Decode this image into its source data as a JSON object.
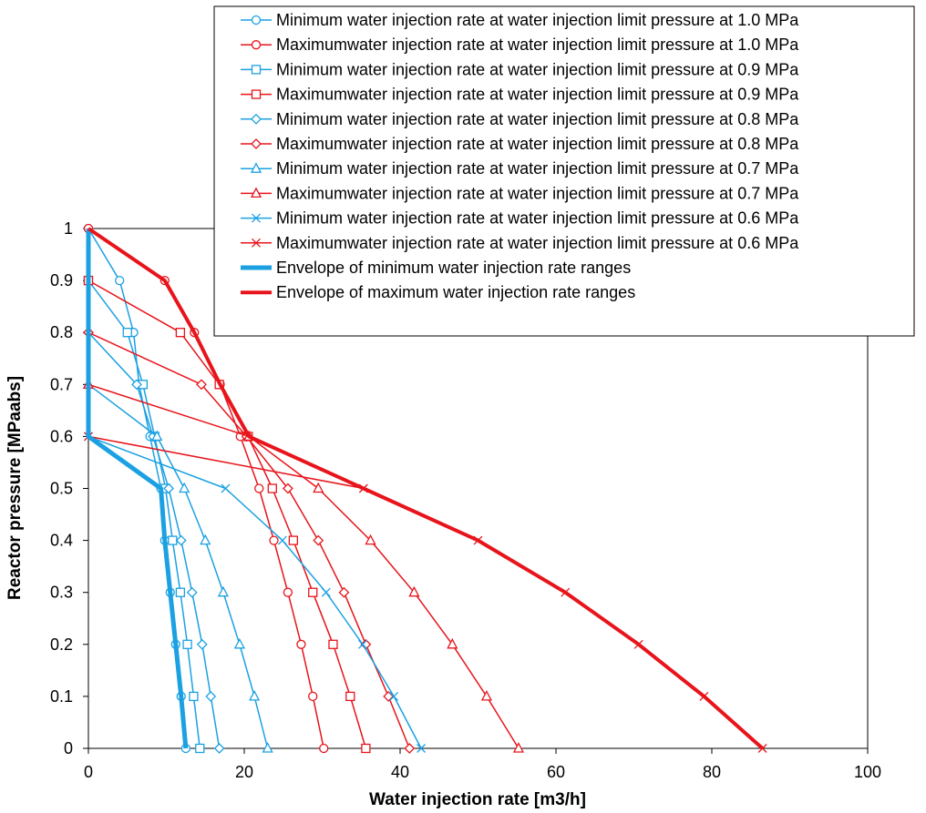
{
  "chart_data": {
    "type": "line",
    "xlabel": "Water injection rate [m3/h]",
    "ylabel": "Reactor pressure [MPaabs]",
    "xlim": [
      0,
      100
    ],
    "ylim": [
      0,
      1
    ],
    "x_ticks": [
      0,
      20,
      40,
      60,
      80,
      100
    ],
    "y_ticks": [
      0,
      0.1,
      0.2,
      0.3,
      0.4,
      0.5,
      0.6,
      0.7,
      0.8,
      0.9,
      1
    ],
    "grid": false,
    "legend_position": "top-right",
    "series": [
      {
        "name": "Minimum water injection rate at water injection limit pressure at 1.0 MPa",
        "color": "#1ba1e2",
        "marker": "circle",
        "width": 1.5,
        "points": [
          [
            0,
            1.0
          ],
          [
            4.0,
            0.9
          ],
          [
            5.8,
            0.8
          ],
          [
            6.5,
            0.7
          ],
          [
            7.9,
            0.6
          ],
          [
            9.3,
            0.5
          ],
          [
            9.8,
            0.4
          ],
          [
            10.5,
            0.3
          ],
          [
            11.2,
            0.2
          ],
          [
            11.9,
            0.1
          ],
          [
            12.5,
            0.0
          ]
        ]
      },
      {
        "name": "Maximumwater injection rate at water injection limit pressure at 1.0 MPa",
        "color": "#e8141b",
        "marker": "circle",
        "width": 1.5,
        "points": [
          [
            0,
            1.0
          ],
          [
            9.8,
            0.9
          ],
          [
            13.6,
            0.8
          ],
          [
            16.9,
            0.7
          ],
          [
            19.5,
            0.6
          ],
          [
            21.9,
            0.5
          ],
          [
            23.8,
            0.4
          ],
          [
            25.6,
            0.3
          ],
          [
            27.3,
            0.2
          ],
          [
            28.8,
            0.1
          ],
          [
            30.2,
            0.0
          ]
        ]
      },
      {
        "name": "Minimum water injection rate at water injection limit pressure at 0.9 MPa",
        "color": "#1ba1e2",
        "marker": "square",
        "width": 1.5,
        "points": [
          [
            0,
            0.9
          ],
          [
            5.0,
            0.8
          ],
          [
            7.0,
            0.7
          ],
          [
            8.5,
            0.6
          ],
          [
            9.9,
            0.5
          ],
          [
            10.8,
            0.4
          ],
          [
            11.8,
            0.3
          ],
          [
            12.7,
            0.2
          ],
          [
            13.5,
            0.1
          ],
          [
            14.3,
            0.0
          ]
        ]
      },
      {
        "name": "Maximumwater injection rate at water injection limit pressure at 0.9 MPa",
        "color": "#e8141b",
        "marker": "square",
        "width": 1.5,
        "points": [
          [
            0,
            0.9
          ],
          [
            11.8,
            0.8
          ],
          [
            16.8,
            0.7
          ],
          [
            20.5,
            0.6
          ],
          [
            23.6,
            0.5
          ],
          [
            26.3,
            0.4
          ],
          [
            28.8,
            0.3
          ],
          [
            31.4,
            0.2
          ],
          [
            33.6,
            0.1
          ],
          [
            35.6,
            0.0
          ]
        ]
      },
      {
        "name": "Minimum water injection rate at water injection limit pressure at 0.8 MPa",
        "color": "#1ba1e2",
        "marker": "diamond",
        "width": 1.5,
        "points": [
          [
            0,
            0.8
          ],
          [
            6.2,
            0.7
          ],
          [
            8.3,
            0.6
          ],
          [
            10.3,
            0.5
          ],
          [
            11.9,
            0.4
          ],
          [
            13.3,
            0.3
          ],
          [
            14.6,
            0.2
          ],
          [
            15.7,
            0.1
          ],
          [
            16.8,
            0.0
          ]
        ]
      },
      {
        "name": "Maximumwater injection rate at water injection limit pressure at 0.8 MPa",
        "color": "#e8141b",
        "marker": "diamond",
        "width": 1.5,
        "points": [
          [
            0,
            0.8
          ],
          [
            14.5,
            0.7
          ],
          [
            20.3,
            0.6
          ],
          [
            25.6,
            0.5
          ],
          [
            29.5,
            0.4
          ],
          [
            32.8,
            0.3
          ],
          [
            35.6,
            0.2
          ],
          [
            38.5,
            0.1
          ],
          [
            41.2,
            0.0
          ]
        ]
      },
      {
        "name": "Minimum water injection rate at water injection limit pressure at 0.7 MPa",
        "color": "#1ba1e2",
        "marker": "triangle",
        "width": 1.5,
        "points": [
          [
            0,
            0.7
          ],
          [
            8.8,
            0.6
          ],
          [
            12.3,
            0.5
          ],
          [
            15.0,
            0.4
          ],
          [
            17.3,
            0.3
          ],
          [
            19.4,
            0.2
          ],
          [
            21.3,
            0.1
          ],
          [
            23.0,
            0.0
          ]
        ]
      },
      {
        "name": "Maximumwater injection rate at water injection limit pressure at 0.7 MPa",
        "color": "#e8141b",
        "marker": "triangle",
        "width": 1.5,
        "points": [
          [
            0,
            0.7
          ],
          [
            20.6,
            0.6
          ],
          [
            29.5,
            0.5
          ],
          [
            36.2,
            0.4
          ],
          [
            41.8,
            0.3
          ],
          [
            46.7,
            0.2
          ],
          [
            51.1,
            0.1
          ],
          [
            55.2,
            0.0
          ]
        ]
      },
      {
        "name": "Minimum water injection rate at water injection limit pressure at 0.6 MPa",
        "color": "#1ba1e2",
        "marker": "x",
        "width": 1.5,
        "points": [
          [
            0,
            0.6
          ],
          [
            17.6,
            0.5
          ],
          [
            24.9,
            0.4
          ],
          [
            30.5,
            0.3
          ],
          [
            35.2,
            0.2
          ],
          [
            39.2,
            0.1
          ],
          [
            42.7,
            0.0
          ]
        ]
      },
      {
        "name": "Maximumwater injection rate at water injection limit pressure at 0.6 MPa",
        "color": "#e8141b",
        "marker": "x",
        "width": 1.5,
        "points": [
          [
            0,
            0.6
          ],
          [
            35.3,
            0.5
          ],
          [
            50.0,
            0.4
          ],
          [
            61.2,
            0.3
          ],
          [
            70.6,
            0.2
          ],
          [
            79.0,
            0.1
          ],
          [
            86.5,
            0.0
          ]
        ]
      },
      {
        "name": "Envelope of minimum water injection rate ranges",
        "color": "#1ba1e2",
        "marker": "none",
        "width": 5,
        "points": [
          [
            0,
            1.0
          ],
          [
            0,
            0.6
          ],
          [
            9.3,
            0.5
          ],
          [
            9.8,
            0.4
          ],
          [
            10.5,
            0.3
          ],
          [
            11.2,
            0.2
          ],
          [
            11.9,
            0.1
          ],
          [
            12.5,
            0.0
          ]
        ]
      },
      {
        "name": "Envelope of maximum water injection rate ranges",
        "color": "#e8141b",
        "marker": "none",
        "width": 4,
        "points": [
          [
            0,
            1.0
          ],
          [
            9.8,
            0.9
          ],
          [
            13.6,
            0.8
          ],
          [
            16.9,
            0.7
          ],
          [
            20.6,
            0.6
          ],
          [
            35.3,
            0.5
          ],
          [
            50.0,
            0.4
          ],
          [
            61.2,
            0.3
          ],
          [
            70.6,
            0.2
          ],
          [
            79.0,
            0.1
          ],
          [
            86.5,
            0.0
          ]
        ]
      }
    ]
  }
}
